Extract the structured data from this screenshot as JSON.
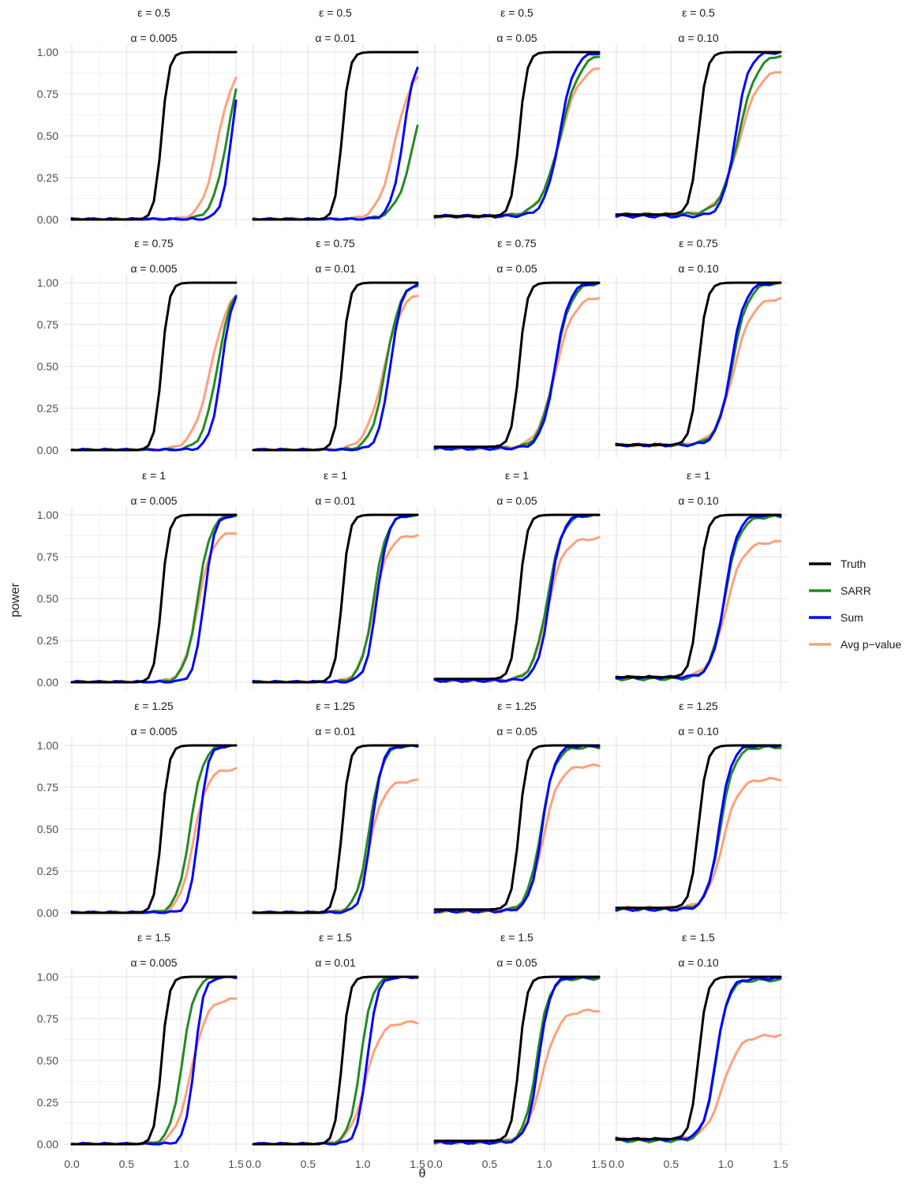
{
  "chart_data": {
    "type": "line",
    "layout": "facet grid, 5 rows (epsilon) x 4 columns (alpha)",
    "xlabel": "θ",
    "ylabel": "power",
    "xlim": [
      0,
      1.5
    ],
    "ylim": [
      0,
      1
    ],
    "x_ticks": [
      "0.0",
      "0.5",
      "1.0",
      "1.5"
    ],
    "y_ticks": [
      "0.00",
      "0.25",
      "0.50",
      "0.75",
      "1.00"
    ],
    "grid": true,
    "legend_position": "right",
    "row_labels": [
      "ε = 0.5",
      "ε = 0.75",
      "ε = 1",
      "ε = 1.25",
      "ε = 1.5"
    ],
    "col_labels": [
      "α = 0.005",
      "α = 0.01",
      "α = 0.05",
      "α = 0.10"
    ],
    "legend": [
      {
        "name": "Truth",
        "color": "#000000"
      },
      {
        "name": "SARR",
        "color": "#228B22"
      },
      {
        "name": "Sum",
        "color": "#0000FF"
      },
      {
        "name": "Avg p−value",
        "color": "#FFA07A"
      }
    ],
    "x": [
      0,
      0.05,
      0.1,
      0.15,
      0.2,
      0.25,
      0.3,
      0.35,
      0.4,
      0.45,
      0.5,
      0.55,
      0.6,
      0.65,
      0.7,
      0.75,
      0.8,
      0.85,
      0.9,
      0.95,
      1.0,
      1.05,
      1.1,
      1.15,
      1.2,
      1.25,
      1.3,
      1.35,
      1.4,
      1.45,
      1.5
    ],
    "truth_by_alpha": {
      "α = 0.005": {
        "mid": 0.82,
        "k": 30,
        "base": 0.0
      },
      "α = 0.01": {
        "mid": 0.81,
        "k": 30,
        "base": 0.0
      },
      "α = 0.05": {
        "mid": 0.77,
        "k": 28,
        "base": 0.02
      },
      "α = 0.10": {
        "mid": 0.75,
        "k": 26,
        "base": 0.03
      }
    },
    "curve_params": [
      [
        {
          "SARR": {
            "mid": 1.42,
            "k": 15,
            "max": 1.0,
            "base": 0.0
          },
          "Sum": {
            "mid": 1.46,
            "k": 22,
            "max": 1.0,
            "base": 0.0
          },
          "Avg p-value": {
            "mid": 1.33,
            "k": 14,
            "max": 0.92,
            "base": 0.0
          }
        },
        {
          "SARR": {
            "mid": 1.48,
            "k": 12,
            "max": 1.0,
            "base": 0.0
          },
          "Sum": {
            "mid": 1.37,
            "k": 18,
            "max": 1.0,
            "base": 0.0
          },
          "Avg p-value": {
            "mid": 1.29,
            "k": 13,
            "max": 0.9,
            "base": 0.0
          }
        },
        {
          "SARR": {
            "mid": 1.15,
            "k": 11,
            "max": 1.0,
            "base": 0.02
          },
          "Sum": {
            "mid": 1.14,
            "k": 15,
            "max": 1.0,
            "base": 0.02
          },
          "Avg p-value": {
            "mid": 1.14,
            "k": 11,
            "max": 0.92,
            "base": 0.02
          }
        },
        {
          "SARR": {
            "mid": 1.12,
            "k": 12,
            "max": 0.99,
            "base": 0.03
          },
          "Sum": {
            "mid": 1.09,
            "k": 17,
            "max": 1.0,
            "base": 0.02
          },
          "Avg p-value": {
            "mid": 1.12,
            "k": 11,
            "max": 0.9,
            "base": 0.03
          }
        }
      ],
      [
        {
          "SARR": {
            "mid": 1.33,
            "k": 15,
            "max": 1.0,
            "base": 0.0
          },
          "Sum": {
            "mid": 1.37,
            "k": 19,
            "max": 1.0,
            "base": 0.0
          },
          "Avg p-value": {
            "mid": 1.27,
            "k": 12,
            "max": 0.98,
            "base": 0.0
          }
        },
        {
          "SARR": {
            "mid": 1.21,
            "k": 15,
            "max": 1.0,
            "base": 0.0
          },
          "Sum": {
            "mid": 1.25,
            "k": 19,
            "max": 1.0,
            "base": 0.0
          },
          "Avg p-value": {
            "mid": 1.19,
            "k": 12,
            "max": 0.95,
            "base": 0.0
          }
        },
        {
          "SARR": {
            "mid": 1.1,
            "k": 14,
            "max": 1.0,
            "base": 0.01
          },
          "Sum": {
            "mid": 1.1,
            "k": 16,
            "max": 1.0,
            "base": 0.01
          },
          "Avg p-value": {
            "mid": 1.1,
            "k": 12,
            "max": 0.92,
            "base": 0.01
          }
        },
        {
          "SARR": {
            "mid": 1.06,
            "k": 14,
            "max": 1.0,
            "base": 0.03
          },
          "Sum": {
            "mid": 1.05,
            "k": 16,
            "max": 1.0,
            "base": 0.03
          },
          "Avg p-value": {
            "mid": 1.07,
            "k": 12,
            "max": 0.91,
            "base": 0.03
          }
        }
      ],
      [
        {
          "SARR": {
            "mid": 1.15,
            "k": 17,
            "max": 1.0,
            "base": 0.0
          },
          "Sum": {
            "mid": 1.21,
            "k": 22,
            "max": 1.0,
            "base": 0.0
          },
          "Avg p-value": {
            "mid": 1.15,
            "k": 15,
            "max": 0.9,
            "base": 0.0
          }
        },
        {
          "SARR": {
            "mid": 1.1,
            "k": 17,
            "max": 1.0,
            "base": 0.0
          },
          "Sum": {
            "mid": 1.13,
            "k": 20,
            "max": 1.0,
            "base": 0.0
          },
          "Avg p-value": {
            "mid": 1.1,
            "k": 15,
            "max": 0.88,
            "base": 0.0
          }
        },
        {
          "SARR": {
            "mid": 1.03,
            "k": 15,
            "max": 1.0,
            "base": 0.01
          },
          "Sum": {
            "mid": 1.05,
            "k": 18,
            "max": 1.0,
            "base": 0.01
          },
          "Avg p-value": {
            "mid": 1.03,
            "k": 14,
            "max": 0.86,
            "base": 0.01
          }
        },
        {
          "SARR": {
            "mid": 0.99,
            "k": 15,
            "max": 0.99,
            "base": 0.02
          },
          "Sum": {
            "mid": 0.99,
            "k": 17,
            "max": 1.0,
            "base": 0.03
          },
          "Avg p-value": {
            "mid": 1.0,
            "k": 13,
            "max": 0.84,
            "base": 0.03
          }
        }
      ],
      [
        {
          "SARR": {
            "mid": 1.08,
            "k": 17,
            "max": 1.0,
            "base": 0.0
          },
          "Sum": {
            "mid": 1.16,
            "k": 24,
            "max": 1.0,
            "base": 0.0
          },
          "Avg p-value": {
            "mid": 1.11,
            "k": 16,
            "max": 0.86,
            "base": 0.0
          }
        },
        {
          "SARR": {
            "mid": 1.06,
            "k": 17,
            "max": 1.0,
            "base": 0.0
          },
          "Sum": {
            "mid": 1.08,
            "k": 21,
            "max": 1.0,
            "base": 0.0
          },
          "Avg p-value": {
            "mid": 1.06,
            "k": 15,
            "max": 0.79,
            "base": 0.0
          }
        },
        {
          "SARR": {
            "mid": 0.97,
            "k": 16,
            "max": 0.99,
            "base": 0.01
          },
          "Sum": {
            "mid": 0.98,
            "k": 18,
            "max": 1.0,
            "base": 0.01
          },
          "Avg p-value": {
            "mid": 0.99,
            "k": 14,
            "max": 0.88,
            "base": 0.01
          }
        },
        {
          "SARR": {
            "mid": 0.95,
            "k": 16,
            "max": 0.99,
            "base": 0.02
          },
          "Sum": {
            "mid": 0.94,
            "k": 18,
            "max": 1.0,
            "base": 0.02
          },
          "Avg p-value": {
            "mid": 0.97,
            "k": 14,
            "max": 0.8,
            "base": 0.03
          }
        }
      ],
      [
        {
          "SARR": {
            "mid": 1.01,
            "k": 18,
            "max": 1.0,
            "base": 0.0
          },
          "Sum": {
            "mid": 1.12,
            "k": 24,
            "max": 1.0,
            "base": 0.0
          },
          "Avg p-value": {
            "mid": 1.09,
            "k": 14,
            "max": 0.87,
            "base": 0.0
          }
        },
        {
          "SARR": {
            "mid": 0.98,
            "k": 19,
            "max": 1.0,
            "base": 0.0
          },
          "Sum": {
            "mid": 1.04,
            "k": 22,
            "max": 1.0,
            "base": 0.0
          },
          "Avg p-value": {
            "mid": 1.02,
            "k": 14,
            "max": 0.73,
            "base": 0.0
          }
        },
        {
          "SARR": {
            "mid": 0.93,
            "k": 18,
            "max": 0.99,
            "base": 0.01
          },
          "Sum": {
            "mid": 0.95,
            "k": 19,
            "max": 1.0,
            "base": 0.01
          },
          "Avg p-value": {
            "mid": 0.98,
            "k": 13,
            "max": 0.8,
            "base": 0.01
          }
        },
        {
          "SARR": {
            "mid": 0.91,
            "k": 18,
            "max": 0.98,
            "base": 0.02
          },
          "Sum": {
            "mid": 0.91,
            "k": 18,
            "max": 0.99,
            "base": 0.03
          },
          "Avg p-value": {
            "mid": 0.97,
            "k": 13,
            "max": 0.65,
            "base": 0.03
          }
        }
      ]
    ]
  }
}
